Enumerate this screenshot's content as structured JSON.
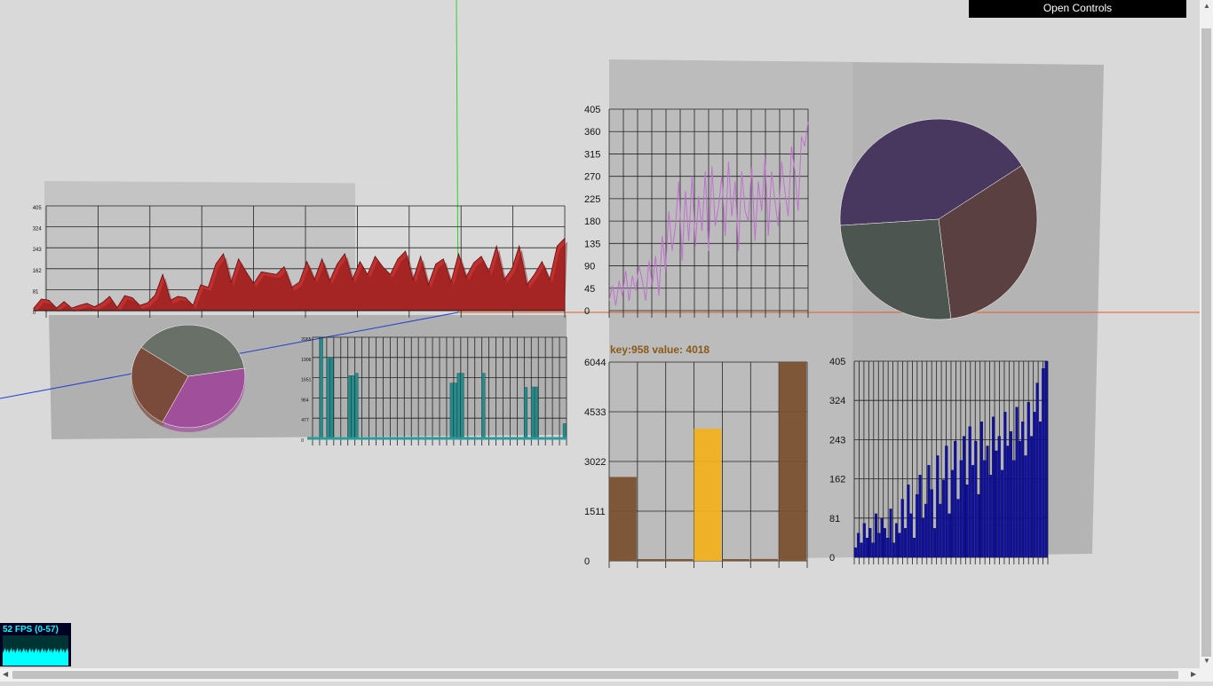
{
  "controls": {
    "label": "Open Controls"
  },
  "fps": {
    "label": "52 FPS (0-57)"
  },
  "tooltip": {
    "text": "key:958 value: 4018",
    "color": "#8a5a1a"
  },
  "colors": {
    "red_area": "#c0302f",
    "teal_bars": "#2a8a8a",
    "purple_line": "#c070d0",
    "blue_bars": "#1010a0",
    "bar_brown": "#7a5030",
    "bar_highlight": "#f0b020"
  },
  "chart_data": [
    {
      "type": "area",
      "ylim": [
        0,
        405
      ],
      "y_tick_labels": [
        "405",
        "324",
        "243",
        "162",
        "81",
        "0"
      ],
      "values": [
        10,
        45,
        40,
        10,
        35,
        10,
        20,
        28,
        15,
        30,
        55,
        12,
        58,
        50,
        20,
        30,
        60,
        140,
        40,
        55,
        50,
        20,
        100,
        90,
        180,
        220,
        110,
        200,
        150,
        105,
        150,
        145,
        140,
        170,
        90,
        110,
        190,
        120,
        200,
        115,
        180,
        220,
        120,
        190,
        140,
        210,
        170,
        140,
        200,
        230,
        120,
        210,
        100,
        180,
        200,
        110,
        220,
        130,
        185,
        210,
        150,
        250,
        120,
        160,
        250,
        100,
        140,
        190,
        120,
        250,
        280
      ]
    },
    {
      "type": "pie",
      "slices": [
        {
          "value": 35,
          "color": "#a0509a"
        },
        {
          "value": 27,
          "color": "#7a4a3a"
        },
        {
          "value": 38,
          "color": "#687068"
        }
      ]
    },
    {
      "type": "bar",
      "ylim": [
        0,
        2065
      ],
      "y_tick_labels": [
        "2065",
        "1906",
        "1651",
        "964",
        "477",
        "0"
      ],
      "values": [
        5,
        10,
        2040,
        5,
        1650,
        1650,
        5,
        5,
        5,
        5,
        1280,
        1280,
        1330,
        5,
        5,
        5,
        5,
        5,
        10,
        5,
        5,
        5,
        5,
        5,
        5,
        5,
        5,
        5,
        5,
        5,
        5,
        5,
        5,
        5,
        5,
        5,
        5,
        5,
        5,
        1130,
        1130,
        1330,
        1330,
        5,
        5,
        5,
        5,
        5,
        1330,
        5,
        5,
        5,
        5,
        5,
        5,
        5,
        5,
        5,
        5,
        5,
        1040,
        5,
        1050,
        1050,
        5,
        5,
        5,
        5,
        5,
        5,
        5,
        300
      ]
    },
    {
      "type": "line",
      "ylim": [
        0,
        405
      ],
      "y_tick_labels": [
        "405",
        "360",
        "315",
        "270",
        "225",
        "180",
        "135",
        "90",
        "45",
        "0"
      ],
      "values": [
        20,
        50,
        10,
        60,
        30,
        80,
        20,
        70,
        40,
        90,
        60,
        20,
        100,
        50,
        110,
        30,
        150,
        80,
        200,
        120,
        170,
        260,
        100,
        240,
        140,
        270,
        130,
        230,
        160,
        280,
        120,
        290,
        170,
        210,
        270,
        150,
        300,
        190,
        260,
        120,
        280,
        200,
        180,
        290,
        140,
        260,
        200,
        310,
        150,
        280,
        220,
        170,
        300,
        240,
        190,
        330,
        280,
        200,
        350,
        330,
        380
      ]
    },
    {
      "type": "pie",
      "slices": [
        {
          "value": 42,
          "color": "#483860"
        },
        {
          "value": 32,
          "color": "#5a4040"
        },
        {
          "value": 26,
          "color": "#4d5550"
        }
      ]
    },
    {
      "type": "bar",
      "ylim": [
        0,
        6044
      ],
      "y_tick_labels": [
        "6044",
        "4533",
        "3022",
        "1511",
        "0"
      ],
      "values": [
        2550,
        20,
        40,
        4018,
        30,
        60,
        6044
      ],
      "highlight_index": 3
    },
    {
      "type": "bar",
      "ylim": [
        0,
        405
      ],
      "y_tick_labels": [
        "405",
        "324",
        "243",
        "162",
        "81",
        "0"
      ],
      "values": [
        20,
        50,
        30,
        70,
        40,
        60,
        30,
        90,
        50,
        80,
        60,
        40,
        100,
        30,
        70,
        50,
        120,
        60,
        150,
        90,
        40,
        130,
        170,
        80,
        110,
        190,
        140,
        60,
        210,
        110,
        160,
        230,
        90,
        180,
        240,
        120,
        200,
        250,
        150,
        270,
        190,
        240,
        130,
        280,
        200,
        230,
        170,
        290,
        220,
        250,
        180,
        300,
        230,
        260,
        200,
        310,
        240,
        280,
        210,
        320,
        250,
        300,
        360,
        280,
        390,
        405
      ]
    }
  ]
}
